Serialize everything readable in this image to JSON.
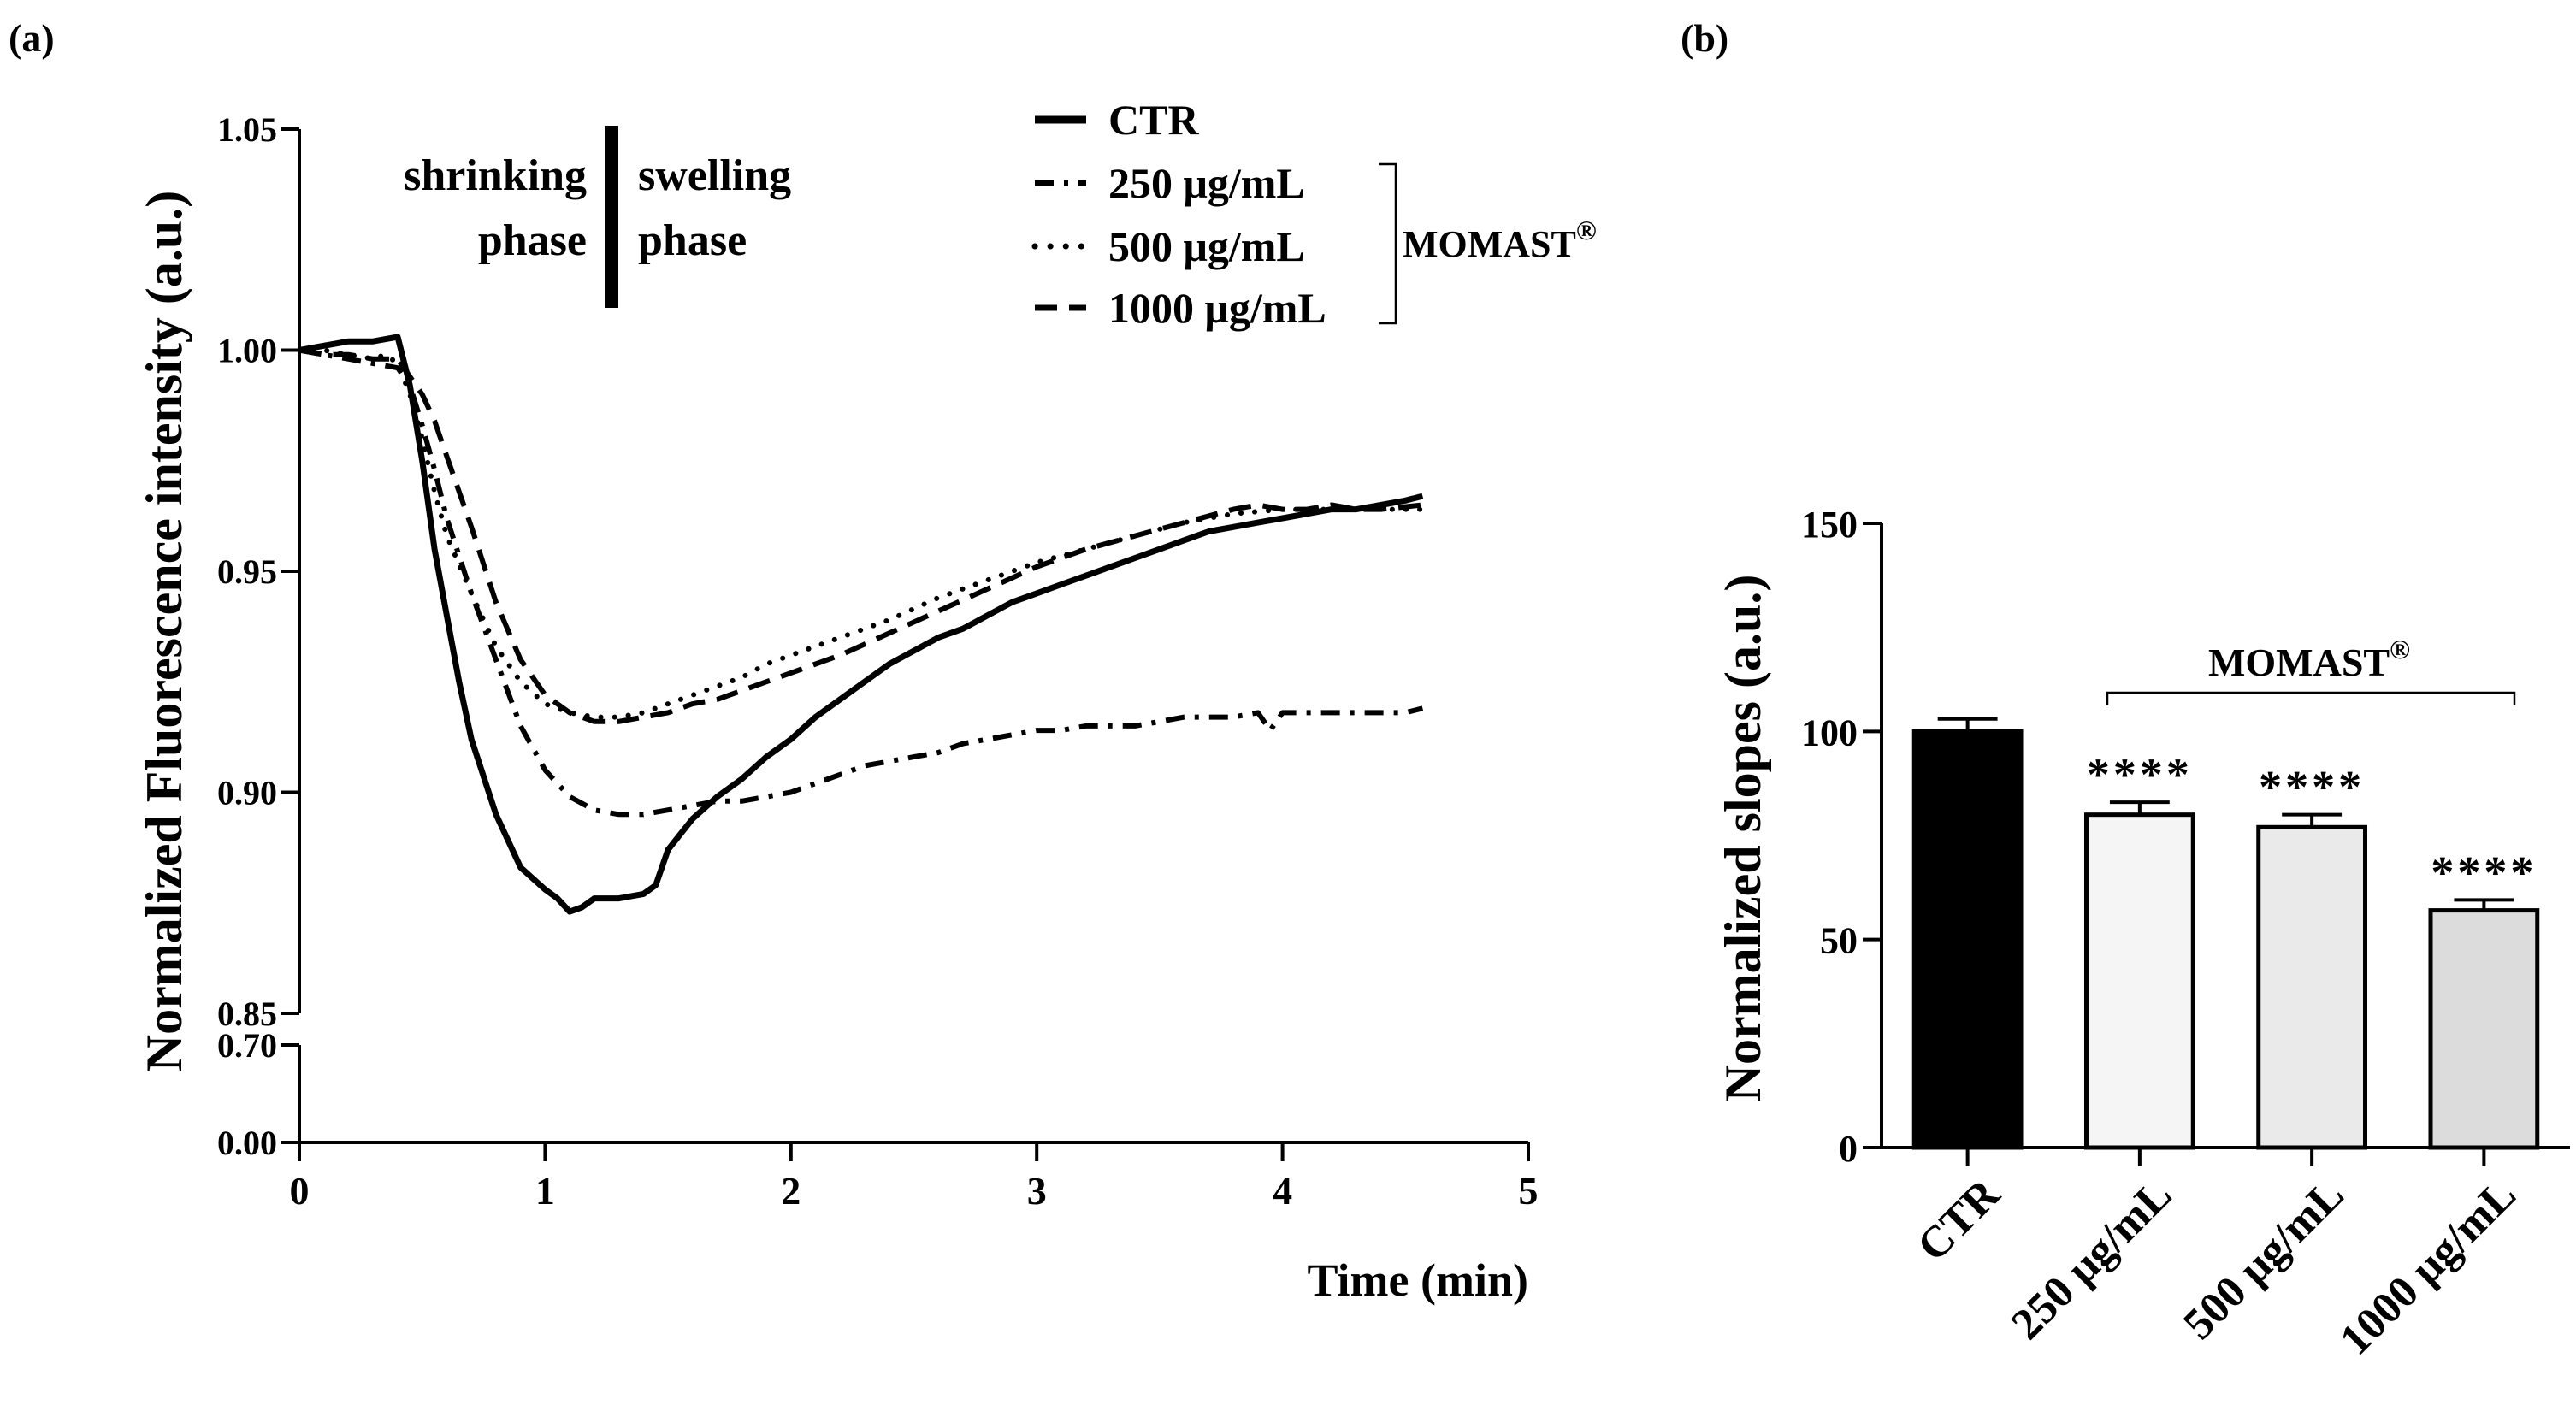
{
  "figure": {
    "panel_a_label": "(a)",
    "panel_b_label": "(b)"
  },
  "chart_data": [
    {
      "type": "line",
      "panel": "(a)",
      "xlabel": "Time (min)",
      "ylabel": "Normalized Fluorescence intensity (a.u.)",
      "xlim": [
        0,
        5
      ],
      "x_ticks": [
        "0",
        "1",
        "2",
        "3",
        "4",
        "5"
      ],
      "y_axis_broken": true,
      "ylim_upper": [
        0.85,
        1.05
      ],
      "ylim_lower": [
        0.0,
        0.7
      ],
      "y_ticks_upper": [
        "0.85",
        "0.90",
        "0.95",
        "1.00",
        "1.05"
      ],
      "y_ticks_lower": [
        "0.00",
        "0.70"
      ],
      "phase_annotation": {
        "left": [
          "shrinking",
          "phase"
        ],
        "right": [
          "swelling",
          "phase"
        ],
        "divider_x": 1.27
      },
      "legend": {
        "entries": [
          "CTR",
          "250 μg/mL",
          "500 μg/mL",
          "1000 μg/mL"
        ],
        "group_label": "MOMAST",
        "group_mark": "®"
      },
      "series": [
        {
          "name": "CTR",
          "style": "solid",
          "points": [
            [
              0,
              1.0
            ],
            [
              0.1,
              1.001
            ],
            [
              0.2,
              1.002
            ],
            [
              0.3,
              1.002
            ],
            [
              0.4,
              1.003
            ],
            [
              0.45,
              0.992
            ],
            [
              0.5,
              0.975
            ],
            [
              0.55,
              0.955
            ],
            [
              0.6,
              0.94
            ],
            [
              0.65,
              0.925
            ],
            [
              0.7,
              0.912
            ],
            [
              0.8,
              0.895
            ],
            [
              0.9,
              0.883
            ],
            [
              1.0,
              0.878
            ],
            [
              1.05,
              0.876
            ],
            [
              1.1,
              0.873
            ],
            [
              1.15,
              0.874
            ],
            [
              1.2,
              0.876
            ],
            [
              1.3,
              0.876
            ],
            [
              1.4,
              0.877
            ],
            [
              1.45,
              0.879
            ],
            [
              1.5,
              0.887
            ],
            [
              1.6,
              0.894
            ],
            [
              1.7,
              0.899
            ],
            [
              1.8,
              0.903
            ],
            [
              1.9,
              0.908
            ],
            [
              2.0,
              0.912
            ],
            [
              2.1,
              0.917
            ],
            [
              2.2,
              0.921
            ],
            [
              2.3,
              0.925
            ],
            [
              2.4,
              0.929
            ],
            [
              2.5,
              0.932
            ],
            [
              2.6,
              0.935
            ],
            [
              2.7,
              0.937
            ],
            [
              2.8,
              0.94
            ],
            [
              2.9,
              0.943
            ],
            [
              3.0,
              0.945
            ],
            [
              3.1,
              0.947
            ],
            [
              3.2,
              0.949
            ],
            [
              3.3,
              0.951
            ],
            [
              3.4,
              0.953
            ],
            [
              3.5,
              0.955
            ],
            [
              3.6,
              0.957
            ],
            [
              3.7,
              0.959
            ],
            [
              3.8,
              0.96
            ],
            [
              3.9,
              0.961
            ],
            [
              4.0,
              0.962
            ],
            [
              4.1,
              0.963
            ],
            [
              4.2,
              0.964
            ],
            [
              4.3,
              0.964
            ],
            [
              4.4,
              0.965
            ],
            [
              4.5,
              0.966
            ],
            [
              4.57,
              0.967
            ]
          ]
        },
        {
          "name": "250 μg/mL",
          "style": "dashdot",
          "points": [
            [
              0,
              1.0
            ],
            [
              0.1,
              0.999
            ],
            [
              0.2,
              0.998
            ],
            [
              0.3,
              0.997
            ],
            [
              0.4,
              0.996
            ],
            [
              0.45,
              0.992
            ],
            [
              0.5,
              0.983
            ],
            [
              0.55,
              0.973
            ],
            [
              0.6,
              0.962
            ],
            [
              0.7,
              0.945
            ],
            [
              0.8,
              0.93
            ],
            [
              0.9,
              0.915
            ],
            [
              1.0,
              0.905
            ],
            [
              1.1,
              0.899
            ],
            [
              1.2,
              0.896
            ],
            [
              1.3,
              0.895
            ],
            [
              1.4,
              0.895
            ],
            [
              1.5,
              0.896
            ],
            [
              1.6,
              0.897
            ],
            [
              1.7,
              0.898
            ],
            [
              1.8,
              0.898
            ],
            [
              1.9,
              0.899
            ],
            [
              2.0,
              0.9
            ],
            [
              2.1,
              0.902
            ],
            [
              2.2,
              0.904
            ],
            [
              2.3,
              0.906
            ],
            [
              2.4,
              0.907
            ],
            [
              2.5,
              0.908
            ],
            [
              2.6,
              0.909
            ],
            [
              2.7,
              0.911
            ],
            [
              2.8,
              0.912
            ],
            [
              2.9,
              0.913
            ],
            [
              3.0,
              0.914
            ],
            [
              3.1,
              0.914
            ],
            [
              3.2,
              0.915
            ],
            [
              3.3,
              0.915
            ],
            [
              3.4,
              0.915
            ],
            [
              3.5,
              0.916
            ],
            [
              3.6,
              0.917
            ],
            [
              3.7,
              0.917
            ],
            [
              3.8,
              0.917
            ],
            [
              3.9,
              0.918
            ],
            [
              3.95,
              0.914
            ],
            [
              4.0,
              0.918
            ],
            [
              4.1,
              0.918
            ],
            [
              4.2,
              0.918
            ],
            [
              4.3,
              0.918
            ],
            [
              4.4,
              0.918
            ],
            [
              4.5,
              0.918
            ],
            [
              4.57,
              0.919
            ]
          ]
        },
        {
          "name": "500 μg/mL",
          "style": "dotted",
          "points": [
            [
              0,
              1.0
            ],
            [
              0.1,
              1.0
            ],
            [
              0.2,
              0.999
            ],
            [
              0.3,
              0.998
            ],
            [
              0.35,
              0.999
            ],
            [
              0.4,
              0.997
            ],
            [
              0.45,
              0.99
            ],
            [
              0.5,
              0.98
            ],
            [
              0.55,
              0.968
            ],
            [
              0.6,
              0.958
            ],
            [
              0.7,
              0.945
            ],
            [
              0.8,
              0.933
            ],
            [
              0.9,
              0.925
            ],
            [
              1.0,
              0.92
            ],
            [
              1.1,
              0.918
            ],
            [
              1.2,
              0.917
            ],
            [
              1.3,
              0.917
            ],
            [
              1.4,
              0.918
            ],
            [
              1.5,
              0.92
            ],
            [
              1.6,
              0.922
            ],
            [
              1.7,
              0.924
            ],
            [
              1.8,
              0.926
            ],
            [
              1.9,
              0.929
            ],
            [
              2.0,
              0.931
            ],
            [
              2.2,
              0.935
            ],
            [
              2.4,
              0.939
            ],
            [
              2.6,
              0.944
            ],
            [
              2.8,
              0.948
            ],
            [
              3.0,
              0.952
            ],
            [
              3.2,
              0.955
            ],
            [
              3.4,
              0.958
            ],
            [
              3.6,
              0.961
            ],
            [
              3.8,
              0.963
            ],
            [
              4.0,
              0.964
            ],
            [
              4.2,
              0.964
            ],
            [
              4.4,
              0.964
            ],
            [
              4.57,
              0.964
            ]
          ]
        },
        {
          "name": "1000 μg/mL",
          "style": "longdash",
          "points": [
            [
              0,
              1.0
            ],
            [
              0.1,
              0.999
            ],
            [
              0.2,
              0.999
            ],
            [
              0.3,
              0.998
            ],
            [
              0.4,
              0.998
            ],
            [
              0.45,
              0.994
            ],
            [
              0.5,
              0.99
            ],
            [
              0.55,
              0.984
            ],
            [
              0.6,
              0.976
            ],
            [
              0.7,
              0.96
            ],
            [
              0.8,
              0.943
            ],
            [
              0.9,
              0.93
            ],
            [
              1.0,
              0.922
            ],
            [
              1.1,
              0.918
            ],
            [
              1.2,
              0.916
            ],
            [
              1.3,
              0.916
            ],
            [
              1.4,
              0.917
            ],
            [
              1.5,
              0.918
            ],
            [
              1.6,
              0.92
            ],
            [
              1.7,
              0.921
            ],
            [
              1.8,
              0.923
            ],
            [
              1.9,
              0.925
            ],
            [
              2.0,
              0.927
            ],
            [
              2.2,
              0.931
            ],
            [
              2.4,
              0.936
            ],
            [
              2.6,
              0.941
            ],
            [
              2.8,
              0.946
            ],
            [
              3.0,
              0.951
            ],
            [
              3.2,
              0.955
            ],
            [
              3.4,
              0.958
            ],
            [
              3.6,
              0.961
            ],
            [
              3.8,
              0.964
            ],
            [
              3.9,
              0.965
            ],
            [
              4.0,
              0.964
            ],
            [
              4.1,
              0.964
            ],
            [
              4.2,
              0.965
            ],
            [
              4.3,
              0.964
            ],
            [
              4.4,
              0.964
            ],
            [
              4.57,
              0.965
            ]
          ]
        }
      ]
    },
    {
      "type": "bar",
      "panel": "(b)",
      "ylabel": "Normalized slopes (a.u.)",
      "ylim": [
        0,
        150
      ],
      "y_ticks": [
        "0",
        "50",
        "100",
        "150"
      ],
      "categories": [
        "CTR",
        "250 μg/mL",
        "500 μg/mL",
        "1000 μg/mL"
      ],
      "values": [
        100,
        80,
        77,
        57
      ],
      "errors": [
        3,
        3,
        3,
        2.5
      ],
      "fills": [
        "#000000",
        "#f5f5f5",
        "#eaeaea",
        "#dcdcdc"
      ],
      "significance": [
        "",
        "****",
        "****",
        "****"
      ],
      "bracket": {
        "label": "MOMAST",
        "mark": "®",
        "from": "250 μg/mL",
        "to": "1000 μg/mL"
      }
    }
  ]
}
